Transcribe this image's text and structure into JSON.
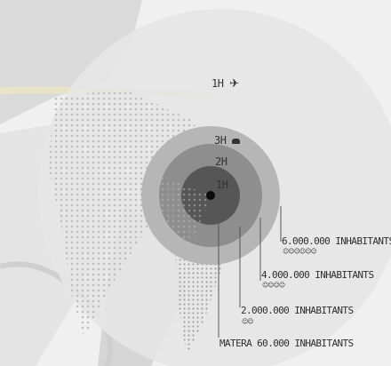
{
  "rings": [
    {
      "label": "1H",
      "icon": "plane-icon"
    },
    {
      "label": "3H",
      "icon": "car-icon"
    },
    {
      "label": "2H",
      "icon": ""
    },
    {
      "label": "1H",
      "icon": ""
    }
  ],
  "population_labels": [
    {
      "text": "6.000.000 INHABITANTS",
      "people": "☺☺☺☺☺☺"
    },
    {
      "text": "4.000.000 INHABITANTS",
      "people": "☺☺☺☺"
    },
    {
      "text": "2.000.000 INHABITANTS",
      "people": "☺☺"
    },
    {
      "text": "MATERA 60.000 INHABITANTS",
      "people": ""
    }
  ],
  "colors": {
    "outer_disc": "#e3e3e3",
    "ring_3h": "#b4b4b4",
    "ring_2h": "#8d8d8d",
    "ring_1h": "#555555",
    "center": "#0a0a0a"
  }
}
